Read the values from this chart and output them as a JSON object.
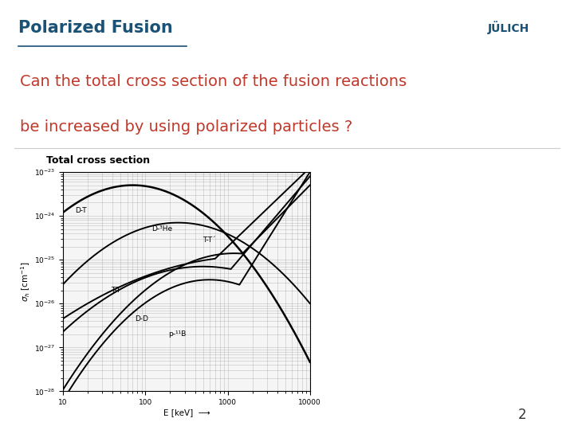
{
  "title": "Polarized Fusion",
  "question_line1": "Can the total cross section of the fusion reactions",
  "question_line2": "be increased by using polarized particles ?",
  "graph_title": "Total cross section",
  "xlabel": "E [keV]",
  "ylabel": "σ [cm²]",
  "page_number": "2",
  "bg_color": "#ffffff",
  "title_color": "#1a5276",
  "question_color": "#c0392b",
  "left_bar_color": "#2e6da4",
  "xlim": [
    10,
    10000
  ],
  "ylim": [
    1e-28,
    1e-23
  ]
}
